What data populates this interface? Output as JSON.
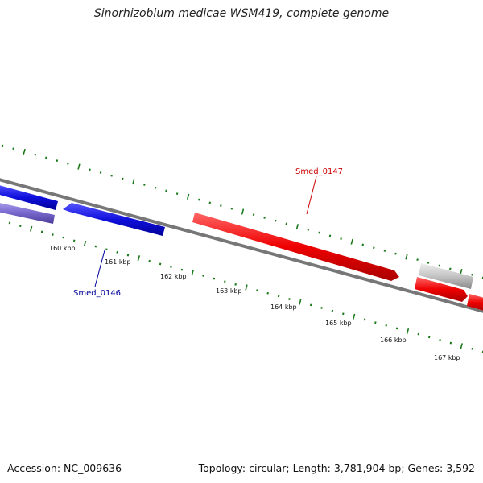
{
  "title": "Sinorhizobium medicae WSM419, complete genome",
  "footer": {
    "accession": "Accession: NC_009636",
    "topology": "Topology: circular; Length: 3,781,904 bp; Genes: 3,592"
  },
  "colors": {
    "forward_gene": "#ee0000",
    "reverse_gene": "#1010dd",
    "pseudo_reverse": "#7766cc",
    "other_feature": "#bbbbbb",
    "backbone": "#777777",
    "tick": "#1a7a1a",
    "forward_label": "#cc0000",
    "reverse_label": "#000099"
  },
  "scale_labels": [
    "160 kbp",
    "161 kbp",
    "162 kbp",
    "163 kbp",
    "164 kbp",
    "165 kbp",
    "166 kbp",
    "167 kbp"
  ],
  "gene_labels": [
    {
      "text": "Smed_0147",
      "strand": "forward"
    },
    {
      "text": "Smed_0146",
      "strand": "reverse"
    }
  ]
}
